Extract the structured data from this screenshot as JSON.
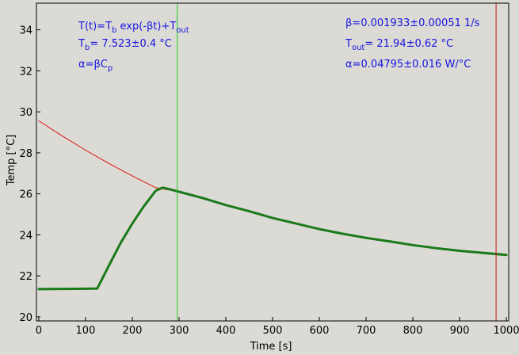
{
  "chart_data": {
    "type": "line",
    "title": "",
    "xlabel": "Time [s]",
    "ylabel": "Temp [°C]",
    "xlim": [
      -5,
      1005
    ],
    "ylim": [
      19.8,
      35.3
    ],
    "x_ticks": [
      0,
      100,
      200,
      300,
      400,
      500,
      600,
      700,
      800,
      900,
      1000
    ],
    "y_ticks": [
      20,
      22,
      24,
      26,
      28,
      30,
      32,
      34
    ],
    "grid": false,
    "legend": "none",
    "series": [
      {
        "kind": "fit-curve",
        "color": "#dd1111",
        "x": [
          0,
          50,
          100,
          150,
          200,
          250,
          300
        ],
        "y": [
          29.56,
          28.82,
          28.13,
          27.48,
          26.87,
          26.3,
          26.1
        ]
      },
      {
        "kind": "measured",
        "color": "#1a7a1a",
        "x": [
          0,
          50,
          100,
          125,
          150,
          175,
          200,
          225,
          250,
          265,
          275,
          300,
          350,
          400,
          450,
          500,
          550,
          600,
          650,
          700,
          750,
          800,
          850,
          900,
          950,
          1000
        ],
        "y": [
          21.35,
          21.36,
          21.37,
          21.38,
          22.5,
          23.6,
          24.55,
          25.4,
          26.15,
          26.3,
          26.25,
          26.1,
          25.8,
          25.45,
          25.15,
          24.82,
          24.55,
          24.28,
          24.05,
          23.85,
          23.68,
          23.5,
          23.35,
          23.22,
          23.12,
          23.02
        ]
      }
    ],
    "vlines": [
      {
        "x": 296,
        "color": "#22cc22"
      },
      {
        "x": 978,
        "color": "#cc1111"
      }
    ],
    "annotations": {
      "left": {
        "line1": {
          "a": "T(t)=T",
          "b": "b",
          "c": " exp(-βt)+T",
          "d": "out"
        },
        "line2": {
          "a": "T",
          "b": "b",
          "c": "= 7.523±0.4 °C"
        },
        "line3": {
          "a": "α=βC",
          "b": "p"
        }
      },
      "right": {
        "line1": "β=0.001933±0.00051 1/s",
        "line2": {
          "a": "T",
          "b": "out",
          "c": "= 21.94±0.62 °C"
        },
        "line3": "α=0.04795±0.016 W/°C"
      }
    }
  }
}
